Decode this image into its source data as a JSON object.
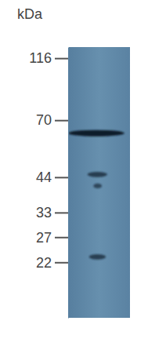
{
  "chart_data": {
    "type": "blot",
    "y_label": "kDa",
    "log": "y",
    "ylim": [
      14,
      127
    ],
    "yticks": [
      116,
      70,
      44,
      33,
      27,
      22
    ],
    "values": [
      63,
      45,
      41,
      23
    ],
    "intensity": [
      1,
      0.35,
      0.15,
      0.3
    ]
  }
}
